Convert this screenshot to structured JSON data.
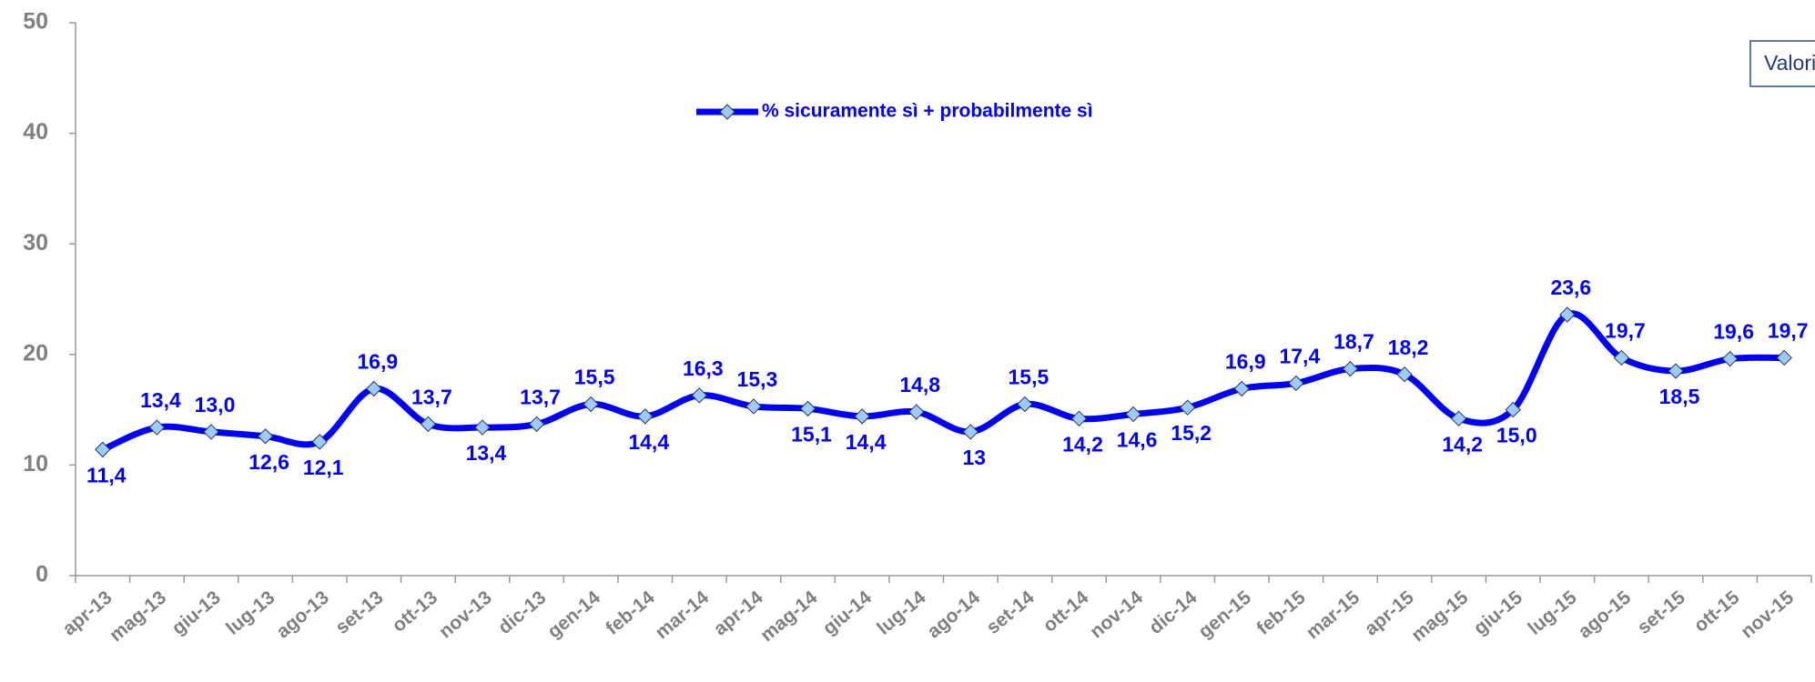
{
  "chart_data": {
    "type": "line",
    "annotation": "Valori",
    "categories": [
      "apr-13",
      "mag-13",
      "giu-13",
      "lug-13",
      "ago-13",
      "set-13",
      "ott-13",
      "nov-13",
      "dic-13",
      "gen-14",
      "feb-14",
      "mar-14",
      "apr-14",
      "mag-14",
      "giu-14",
      "lug-14",
      "ago-14",
      "set-14",
      "ott-14",
      "nov-14",
      "dic-14",
      "gen-15",
      "feb-15",
      "mar-15",
      "apr-15",
      "mag-15",
      "giu-15",
      "lug-15",
      "ago-15",
      "set-15",
      "ott-15",
      "nov-15"
    ],
    "series": [
      {
        "name": "% sicuramente sì + probabilmente sì",
        "color": "#0000ff",
        "marker_color": "#99ccff",
        "values": [
          11.4,
          13.4,
          13.0,
          12.6,
          12.1,
          16.9,
          13.7,
          13.4,
          13.7,
          15.5,
          14.4,
          16.3,
          15.3,
          15.1,
          14.4,
          14.8,
          13,
          15.5,
          14.2,
          14.6,
          15.2,
          16.9,
          17.4,
          18.7,
          18.2,
          14.2,
          15.0,
          23.6,
          19.7,
          18.5,
          19.6,
          19.7
        ],
        "value_labels": [
          "11,4",
          "13,4",
          "13,0",
          "12,6",
          "12,1",
          "16,9",
          "13,7",
          "13,4",
          "13,7",
          "15,5",
          "14,4",
          "16,3",
          "15,3",
          "15,1",
          "14,4",
          "14,8",
          "13",
          "15,5",
          "14,2",
          "14,6",
          "15,2",
          "16,9",
          "17,4",
          "18,7",
          "18,2",
          "14,2",
          "15,0",
          "23,6",
          "19,7",
          "18,5",
          "19,6",
          "19,7"
        ]
      }
    ],
    "ylim": [
      0,
      50
    ],
    "yticks": [
      0,
      10,
      20,
      30,
      40,
      50
    ],
    "grid": false,
    "legend": "top"
  }
}
